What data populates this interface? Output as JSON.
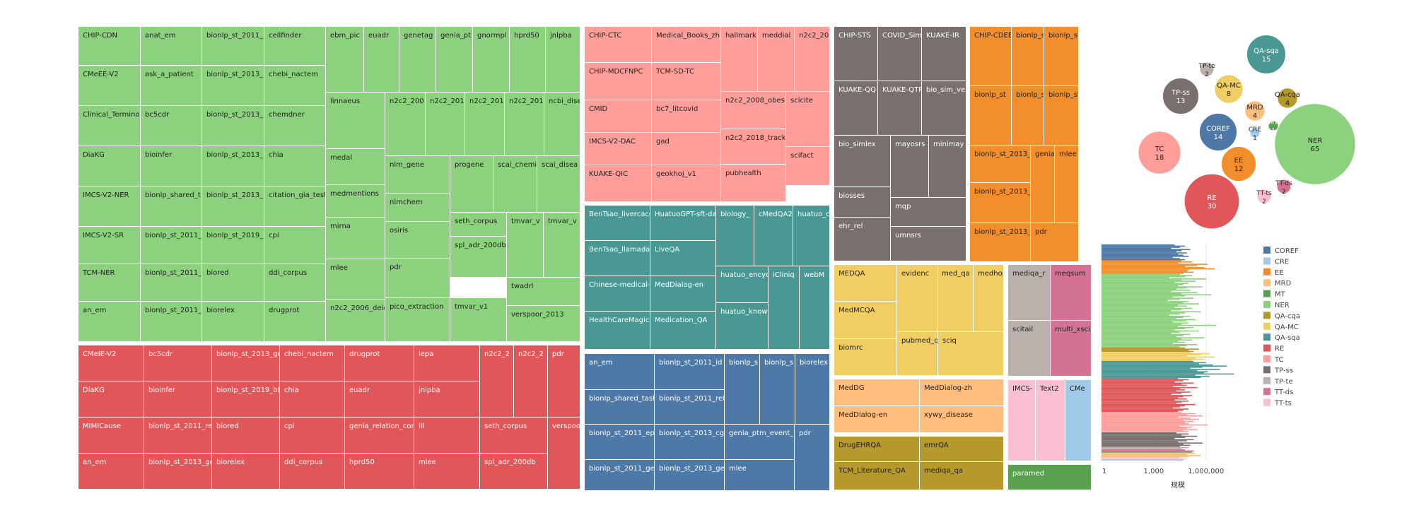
{
  "colors": {
    "COREF": "#4e79a7",
    "CRE": "#a0cbe8",
    "EE": "#f28e2b",
    "MRD": "#ffbe7d",
    "MT": "#59a14f",
    "NER": "#8cd17d",
    "QA-cqa": "#b6992d",
    "QA-MC": "#f1ce63",
    "QA-sqa": "#499894",
    "RE": "#e15759",
    "TC": "#ff9d9a",
    "TP-ss": "#79706e",
    "TP-te": "#bab0ac",
    "TT-ds": "#d37295",
    "TT-ts": "#fabfd2"
  },
  "chart_data": [
    {
      "type": "treemap",
      "title": "",
      "groups": [
        {
          "category": "NER",
          "labels": [
            "CHIP-CDN",
            "anat_em",
            "bionlp_st_2011_",
            "cellfinder",
            "ebm_pic",
            "euadr",
            "genetag",
            "genia_pt",
            "gnormpl",
            "hprd50",
            "jnlpba",
            "CMeEE-V2",
            "ask_a_patient",
            "bionlp_st_2013_",
            "chebi_nactem",
            "linnaeus",
            "n2c2_200",
            "n2c2_201",
            "n2c2_201",
            "n2c2_201",
            "ncbi_dise",
            "Clinical_Terminol",
            "bc5cdr",
            "bionlp_st_2013_",
            "chemdner",
            "medal",
            "nlm_gene",
            "progene",
            "scai_chemi",
            "scai_disea",
            "DiaKG",
            "bioinfer",
            "bionlp_st_2013_",
            "chia",
            "medmentions",
            "nlmchem",
            "IMCS-V2-NER",
            "bionlp_shared_t",
            "bionlp_st_2013_",
            "citation_gia_test",
            "seth_corpus",
            "tmvar_v",
            "tmvar_v",
            "IMCS-V2-SR",
            "bionlp_st_2011_",
            "bionlp_st_2019_",
            "cpi",
            "mirna",
            "osiris",
            "TCM-NER",
            "bionlp_st_2011_",
            "biored",
            "ddi_corpus",
            "spl_adr_200db",
            "twadrl",
            "mlee",
            "pdr",
            "an_em",
            "bionlp_st_2011_",
            "biorelex",
            "drugprot",
            "n2c2_2006_deid",
            "pico_extraction",
            "tmvar_v1",
            "verspoor_2013"
          ]
        },
        {
          "category": "RE",
          "labels": [
            "CMeIE-V2",
            "bc5cdr",
            "bionlp_st_2013_gr",
            "chebi_nactem",
            "drugprot",
            "iepa",
            "n2c2_2",
            "n2c2_2",
            "pdr",
            "DiaKG",
            "bioinfer",
            "bionlp_st_2019_bb",
            "chia",
            "euadr",
            "jnlpba",
            "MIMICause",
            "bionlp_st_2011_re",
            "biored",
            "cpi",
            "genia_relation_cor",
            "lll",
            "seth_corpus",
            "verspoo",
            "an_em",
            "bionlp_st_2013_ge",
            "biorelex",
            "ddi_corpus",
            "hprd50",
            "mlee",
            "spl_adr_200db"
          ]
        },
        {
          "category": "TC",
          "labels": [
            "CHIP-CTC",
            "Medical_Books_zh",
            "hallmark",
            "meddial",
            "n2c2_20",
            "CHIP-MDCFNPC",
            "TCM-SD-TC",
            "CMID",
            "bc7_litcovid",
            "n2c2_2008_obesit",
            "scicite",
            "IMCS-V2-DAC",
            "gad",
            "n2c2_2018_track1",
            "scifact",
            "KUAKE-QIC",
            "geokhoj_v1",
            "pubhealth"
          ]
        },
        {
          "category": "QA-sqa",
          "labels": [
            "BenTsao_livercace",
            "HuatuoGPT-sft-da",
            "biology_",
            "cMedQA2",
            "huatuo_c",
            "BenTsao_llamadat",
            "LiveQA",
            "Chinese-medical-di",
            "MedDialog-en",
            "huatuo_encyclo",
            "iCliniq",
            "webM",
            "HealthCareMagic-",
            "Medication_QA",
            "huatuo_knowle"
          ]
        },
        {
          "category": "COREF",
          "labels": [
            "an_em",
            "bionlp_st_2011_id",
            "bionlp_s",
            "bionlp_s",
            "biorelex",
            "bionlp_shared_task",
            "bionlp_st_2011_rel",
            "bionlp_st_2011_epi",
            "bionlp_st_2013_cg",
            "genia_ptm_event_c",
            "pdr",
            "bionlp_st_2011_ge",
            "bionlp_st_2013_ge",
            "mlee"
          ]
        },
        {
          "category": "TP-ss",
          "labels": [
            "CHIP-STS",
            "COVID_Sim",
            "KUAKE-IR",
            "KUAKE-QQ",
            "KUAKE-QTR",
            "bio_sim_ve",
            "bio_simlex",
            "mayosrs",
            "minimay",
            "biosses",
            "mqp",
            "ehr_rel",
            "umnsrs"
          ]
        },
        {
          "category": "EE",
          "labels": [
            "CHIP-CDEE",
            "bionlp_sh",
            "bionlp_st",
            "bionlp_st",
            "bionlp_st",
            "bionlp_st",
            "bionlp_st_2013_",
            "genia_",
            "mlee",
            "bionlp_st_2013_",
            "bionlp_st_2013_",
            "pdr"
          ]
        },
        {
          "category": "QA-MC",
          "labels": [
            "MEDQA",
            "evidenc",
            "med_qa",
            "medhop",
            "MedMCQA",
            "pubmed_qa",
            "sciq",
            "biomrc"
          ]
        },
        {
          "category": "TP-te",
          "labels": [
            "mediqa_r",
            "scitail"
          ]
        },
        {
          "category": "TT-ds",
          "labels": [
            "meqsum",
            "multi_xsci"
          ]
        },
        {
          "category": "MRD",
          "labels": [
            "MedDG",
            "MedDialog-zh",
            "MedDialog-en",
            "xywy_disease"
          ]
        },
        {
          "category": "TT-ts",
          "labels": [
            "IMCS-",
            "Text2"
          ]
        },
        {
          "category": "CRE",
          "labels": [
            "CMe"
          ]
        },
        {
          "category": "QA-cqa",
          "labels": [
            "DrugEHRQA",
            "emrQA",
            "TCM_Literature_QA",
            "mediqa_qa"
          ]
        },
        {
          "category": "MT",
          "labels": [
            "paramed"
          ]
        }
      ]
    },
    {
      "type": "bubble",
      "title": "",
      "items": [
        {
          "category": "NER",
          "count": 65
        },
        {
          "category": "RE",
          "count": 30
        },
        {
          "category": "TC",
          "count": 18
        },
        {
          "category": "QA-sqa",
          "count": 15
        },
        {
          "category": "COREF",
          "count": 14
        },
        {
          "category": "TP-ss",
          "count": 13
        },
        {
          "category": "EE",
          "count": 12
        },
        {
          "category": "QA-MC",
          "count": 8
        },
        {
          "category": "MRD",
          "count": 4
        },
        {
          "category": "QA-cqa",
          "count": 4
        },
        {
          "category": "TP-te",
          "count": 2
        },
        {
          "category": "TT-ds",
          "count": 2
        },
        {
          "category": "TT-ts",
          "count": 2
        },
        {
          "category": "CRE",
          "count": 1
        },
        {
          "category": "MT",
          "count": 1
        }
      ]
    },
    {
      "type": "bar",
      "orientation": "horizontal",
      "scale": "log",
      "xlabel": "规模",
      "xticks": [
        "1",
        "1,000",
        "1,000,000"
      ],
      "order": [
        "COREF",
        "EE",
        "NER",
        "QA-cqa",
        "QA-MC",
        "QA-sqa",
        "RE",
        "TC",
        "TP-ss",
        "TP-te",
        "TT-ds",
        "MT",
        "MRD",
        "TT-ts",
        "CRE"
      ],
      "log_values_by_category": {
        "COREF": [
          4.2,
          4.8,
          4.5,
          4.0,
          5.1,
          4.6,
          4.3,
          4.9,
          4.4,
          4.7,
          5.0,
          4.1,
          4.5,
          4.8
        ],
        "EE": [
          4.6,
          5.2,
          4.4,
          6.1,
          5.5,
          4.8,
          5.9,
          6.5,
          5.0,
          4.9,
          5.3,
          4.7
        ],
        "NER": [
          4.5,
          5.2,
          4.8,
          3.9,
          6.0,
          4.6,
          5.4,
          4.2,
          5.0,
          4.7,
          4.4,
          5.8,
          4.9,
          4.3,
          5.1,
          4.0,
          5.5,
          4.6,
          6.3,
          4.8,
          4.1,
          5.3,
          4.5,
          3.8,
          5.0,
          4.7,
          5.6,
          4.4,
          4.9,
          4.2,
          5.2,
          4.6,
          4.0,
          5.7,
          4.8,
          4.5,
          3.9,
          5.1,
          4.7,
          4.3,
          5.4,
          4.9,
          4.1,
          5.0,
          4.6,
          6.6,
          4.4,
          5.3,
          4.8,
          4.2,
          5.6,
          4.5,
          4.0,
          5.1,
          4.7,
          4.3,
          5.9,
          4.6,
          5.2,
          4.4,
          4.8,
          4.1,
          5.5,
          4.9,
          4.5
        ],
        "QA-cqa": [
          4.8,
          5.6,
          5.0,
          5.3
        ],
        "QA-MC": [
          5.1,
          6.2,
          5.7,
          4.9,
          6.5,
          5.4,
          5.9,
          5.2
        ],
        "QA-sqa": [
          5.3,
          6.0,
          5.6,
          6.4,
          7.2,
          5.8,
          5.1,
          6.8,
          5.5,
          6.1,
          5.9,
          7.6,
          5.4,
          6.2,
          5.7
        ],
        "RE": [
          4.4,
          5.0,
          4.7,
          4.2,
          5.3,
          4.6,
          4.9,
          4.1,
          5.5,
          4.5,
          4.8,
          4.3,
          5.1,
          4.6,
          4.0,
          5.2,
          4.7,
          4.4,
          4.9,
          4.2,
          5.0,
          4.6,
          4.3,
          5.4,
          4.8,
          4.5,
          4.1,
          5.0,
          4.7,
          4.4
        ],
        "TC": [
          4.6,
          5.4,
          4.9,
          5.8,
          4.4,
          5.1,
          5.6,
          4.7,
          5.3,
          4.8,
          5.0,
          6.1,
          4.5,
          5.2,
          4.9,
          5.5,
          4.7,
          5.0
        ],
        "TP-ss": [
          4.3,
          5.0,
          4.6,
          5.5,
          4.8,
          4.2,
          5.3,
          4.9,
          4.4,
          5.8,
          4.7,
          5.1,
          4.5
        ],
        "TP-te": [
          5.0,
          4.6
        ],
        "TT-ds": [
          4.8,
          5.3
        ],
        "MT": [
          5.2
        ],
        "MRD": [
          5.4,
          4.9,
          5.7,
          5.0
        ],
        "TT-ts": [
          4.5,
          4.9
        ],
        "CRE": [
          4.7
        ]
      },
      "legend": [
        "COREF",
        "CRE",
        "EE",
        "MRD",
        "MT",
        "NER",
        "QA-cqa",
        "QA-MC",
        "QA-sqa",
        "RE",
        "TC",
        "TP-ss",
        "TP-te",
        "TT-ds",
        "TT-ts"
      ]
    }
  ]
}
